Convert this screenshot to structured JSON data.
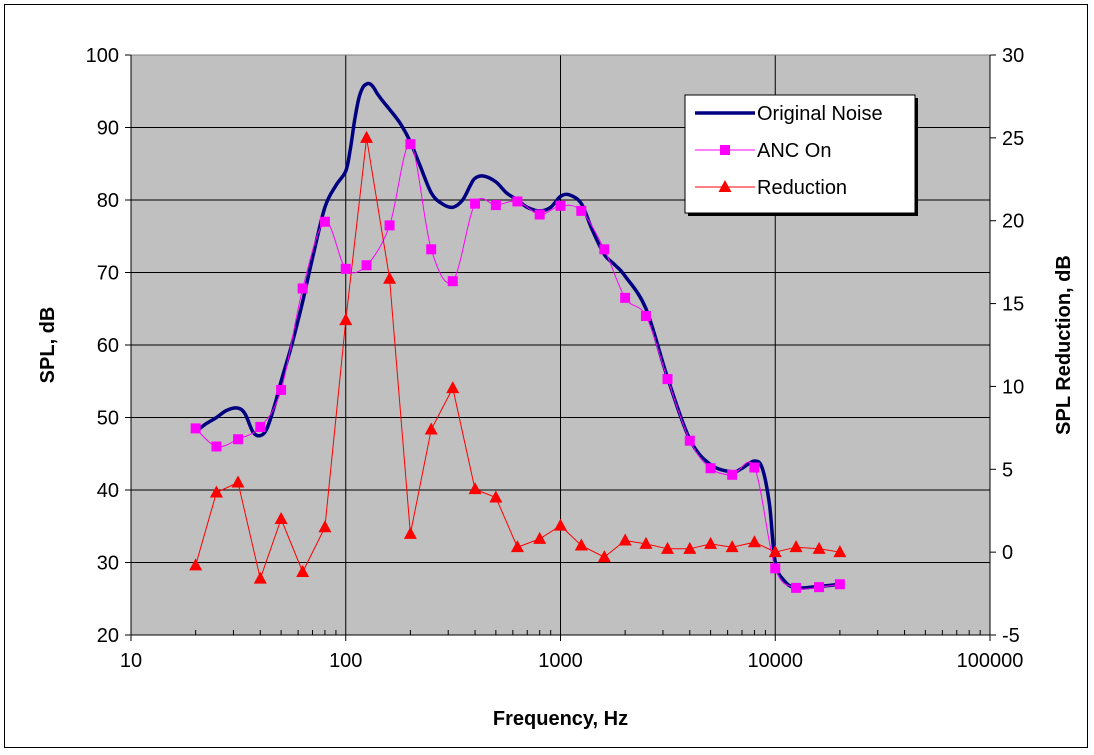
{
  "chart_data": {
    "type": "line",
    "xlabel": "Frequency, Hz",
    "ylabel": "SPL, dB",
    "y2label": "SPL Reduction, dB",
    "xscale": "log",
    "xlim": [
      10,
      100000
    ],
    "ylim": [
      20,
      100
    ],
    "y2lim": [
      -5,
      30
    ],
    "grid": true,
    "legend_position": "top-right",
    "xticks": [
      "10",
      "100",
      "1000",
      "10000",
      "100000"
    ],
    "yticks": [
      "20",
      "30",
      "40",
      "50",
      "60",
      "70",
      "80",
      "90",
      "100"
    ],
    "y2ticks": [
      "-5",
      "0",
      "5",
      "10",
      "15",
      "20",
      "25",
      "30"
    ],
    "plot_background": "#c0c0c0",
    "series": [
      {
        "name": "Original Noise",
        "axis": "left",
        "color": "#000080",
        "marker": "none",
        "x": [
          20,
          22,
          25,
          28,
          31.5,
          34,
          37,
          40,
          43,
          47,
          50,
          56,
          63,
          70,
          80,
          90,
          100,
          105,
          110,
          115,
          120,
          125,
          130,
          135,
          140,
          150,
          160,
          180,
          200,
          220,
          250,
          280,
          315,
          350,
          380,
          400,
          440,
          500,
          560,
          630,
          700,
          800,
          900,
          1000,
          1100,
          1250,
          1400,
          1600,
          1800,
          2000,
          2500,
          3150,
          4000,
          5000,
          6300,
          7000,
          8000,
          8700,
          9400,
          10000,
          11000,
          12500,
          16000,
          20000
        ],
        "y": [
          48,
          49,
          50,
          51,
          51.3,
          50.5,
          48,
          47.5,
          48.5,
          52,
          55,
          60,
          66,
          72,
          79,
          82,
          84,
          87,
          91,
          94,
          95.5,
          96,
          96,
          95.5,
          94.7,
          93.5,
          92.5,
          90.5,
          88,
          85,
          81,
          79.5,
          79,
          80,
          82,
          83,
          83.3,
          82.5,
          81,
          80,
          79,
          78.5,
          79,
          80.5,
          80.7,
          79.5,
          76,
          72.5,
          71,
          69.5,
          65,
          55.5,
          47,
          43.5,
          42.5,
          43,
          44,
          43,
          38,
          30,
          27.5,
          26.5,
          26.7,
          27
        ]
      },
      {
        "name": "ANC On",
        "axis": "left",
        "color": "#ff00ff",
        "marker": "square",
        "x": [
          20,
          25,
          31.5,
          40,
          50,
          63,
          80,
          100,
          125,
          160,
          200,
          250,
          315,
          400,
          500,
          630,
          800,
          1000,
          1250,
          1600,
          2000,
          2500,
          3150,
          4000,
          5000,
          6300,
          8000,
          10000,
          12500,
          16000,
          20000
        ],
        "y": [
          48.5,
          46,
          47,
          48.7,
          53.8,
          67.8,
          77,
          70.5,
          71,
          76.5,
          87.7,
          73.2,
          68.8,
          79.5,
          79.3,
          79.8,
          78,
          79.2,
          78.5,
          73.2,
          66.5,
          64,
          55.3,
          46.8,
          43,
          42.1,
          43.1,
          29.2,
          26.5,
          26.6,
          27
        ]
      },
      {
        "name": "Reduction",
        "axis": "right",
        "color": "#ff0000",
        "marker": "triangle",
        "x": [
          20,
          25,
          31.5,
          40,
          50,
          63,
          80,
          100,
          125,
          160,
          200,
          250,
          315,
          400,
          500,
          630,
          800,
          1000,
          1250,
          1600,
          2000,
          2500,
          3150,
          4000,
          5000,
          6300,
          8000,
          10000,
          12500,
          16000,
          20000
        ],
        "y": [
          -0.8,
          3.6,
          4.2,
          -1.6,
          2,
          -1.2,
          1.5,
          14,
          25,
          16.5,
          1.1,
          7.4,
          9.9,
          3.8,
          3.3,
          0.3,
          0.8,
          1.6,
          0.4,
          -0.3,
          0.7,
          0.5,
          0.2,
          0.2,
          0.5,
          0.3,
          0.6,
          0,
          0.3,
          0.2,
          0
        ]
      }
    ]
  }
}
